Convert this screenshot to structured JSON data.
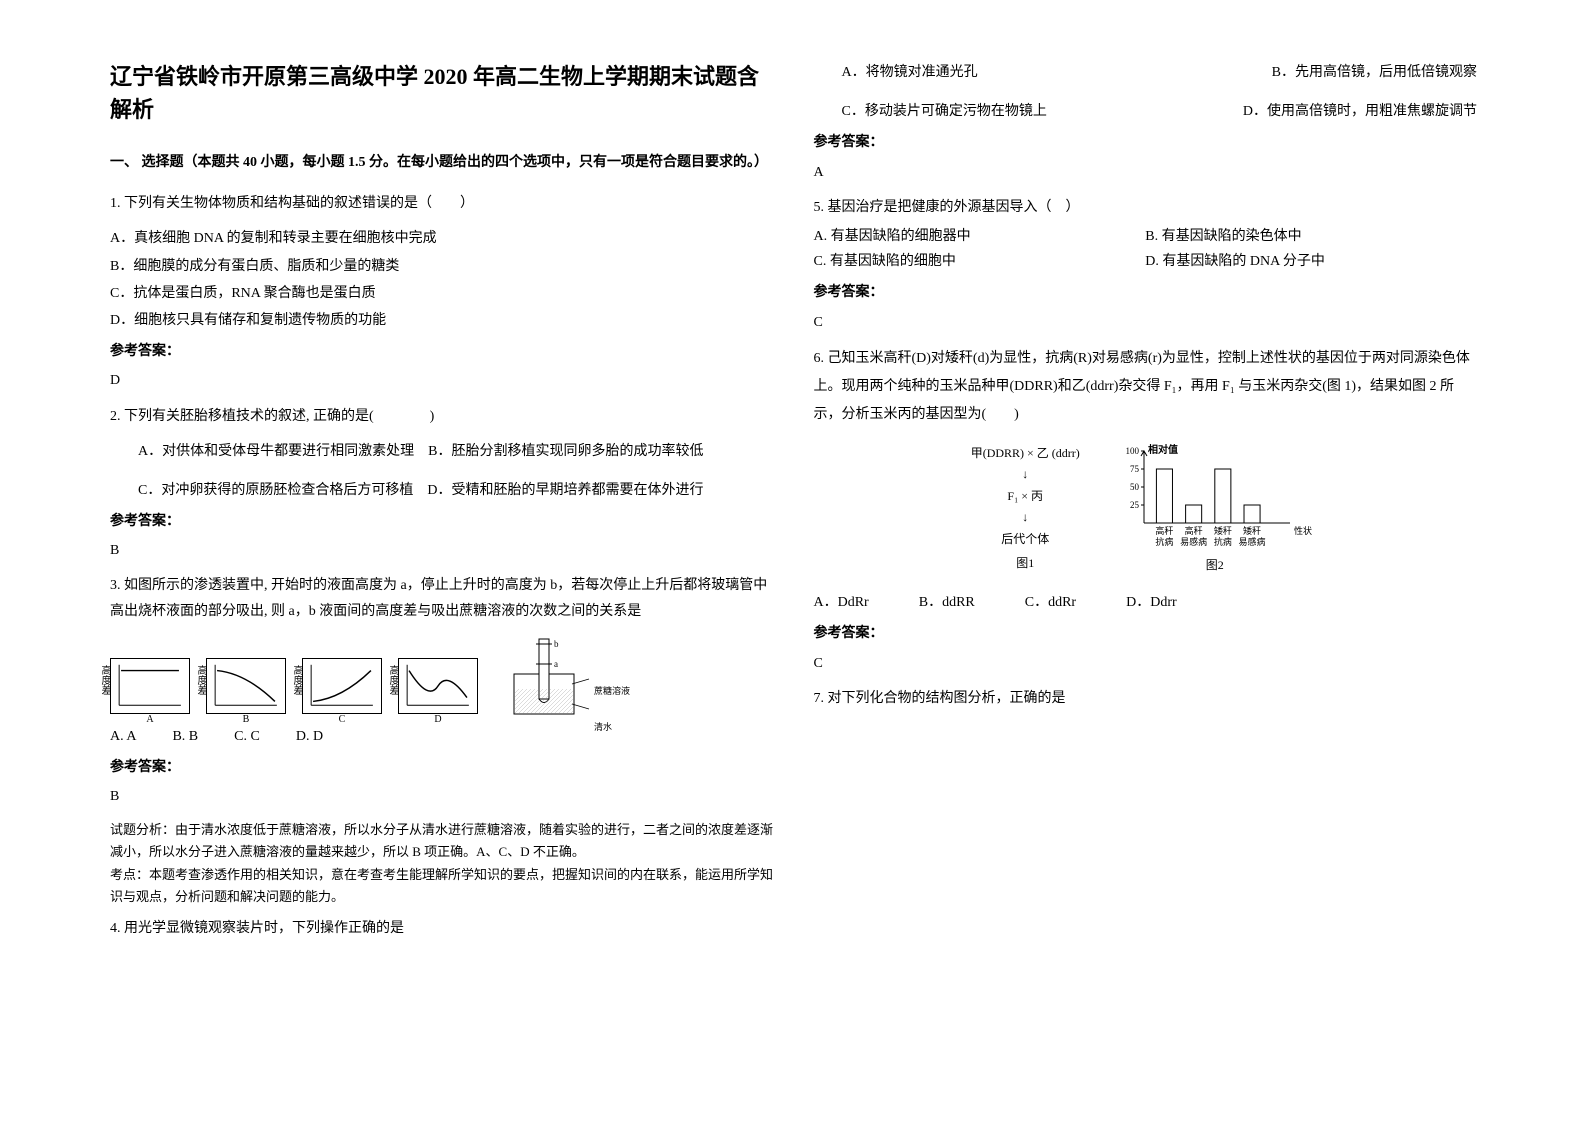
{
  "title": "辽宁省铁岭市开原第三高级中学 2020 年高二生物上学期期末试题含解析",
  "section1_header": "一、 选择题（本题共 40 小题，每小题 1.5 分。在每小题给出的四个选项中，只有一项是符合题目要求的。）",
  "q1": {
    "stem": "1. 下列有关生物体物质和结构基础的叙述错误的是（　　）",
    "optA": "A．真核细胞 DNA 的复制和转录主要在细胞核中完成",
    "optB": "B．细胞膜的成分有蛋白质、脂质和少量的糖类",
    "optC": "C．抗体是蛋白质，RNA 聚合酶也是蛋白质",
    "optD": "D．细胞核只具有储存和复制遗传物质的功能",
    "answer_label": "参考答案：",
    "answer": "D"
  },
  "q2": {
    "stem": "2. 下列有关胚胎移植技术的叙述, 正确的是(　　　　)",
    "optA": "A．对供体和受体母牛都要进行相同激素处理",
    "optB": "B．胚胎分割移植实现同卵多胎的成功率较低",
    "optC": "C．对冲卵获得的原肠胚检查合格后方可移植",
    "optD": "D．受精和胚胎的早期培养都需要在体外进行",
    "answer_label": "参考答案：",
    "answer": "B"
  },
  "q3": {
    "stem": "3. 如图所示的渗透装置中, 开始时的液面高度为 a，停止上升时的高度为 b，若每次停止上升后都将玻璃管中高出烧杯液面的部分吸出, 则 a，b 液面间的高度差与吸出蔗糖溶液的次数之间的关系是",
    "opt_labels": [
      "A. A",
      "B. B",
      "C. C",
      "D. D"
    ],
    "answer_label": "参考答案：",
    "answer": "B",
    "explanation": "试题分析：由于清水浓度低于蔗糖溶液，所以水分子从清水进行蔗糖溶液，随着实验的进行，二者之间的浓度差逐渐减小，所以水分子进入蔗糖溶液的量越来越少，所以 B 项正确。A、C、D 不正确。",
    "explanation2": "考点：本题考查渗透作用的相关知识，意在考查考生能理解所学知识的要点，把握知识间的内在联系，能运用所学知识与观点，分析问题和解决问题的能力。",
    "axis_y": "高度差",
    "chart_letters": [
      "A",
      "B",
      "C",
      "D"
    ],
    "apparatus_labels": {
      "b": "b",
      "a": "a",
      "sucrose": "蔗糖溶液",
      "water": "清水"
    }
  },
  "q4": {
    "stem": "4. 用光学显微镜观察装片时，下列操作正确的是",
    "optA": "A．将物镜对准通光孔",
    "optB": "B．先用高倍镜，后用低倍镜观察",
    "optC": "C．移动装片可确定污物在物镜上",
    "optD": "D．使用高倍镜时，用粗准焦螺旋调节",
    "answer_label": "参考答案：",
    "answer": "A"
  },
  "q5": {
    "stem": "5. 基因治疗是把健康的外源基因导入（　）",
    "optA": "A. 有基因缺陷的细胞器中",
    "optB": "B. 有基因缺陷的染色体中",
    "optC": "C. 有基因缺陷的细胞中",
    "optD": "D. 有基因缺陷的 DNA 分子中",
    "answer_label": "参考答案：",
    "answer": "C"
  },
  "q6": {
    "stem": "6. 己知玉米高秆(D)对矮秆(d)为显性，抗病(R)对易感病(r)为显性，控制上述性状的基因位于两对同源染色体上。现用两个纯种的玉米品种甲(DDRR)和乙(ddrr)杂交得 F₁，再用 F₁ 与玉米丙杂交(图 1)，结果如图 2 所示，分析玉米丙的基因型为(　　)",
    "diagram": {
      "line1": "甲(DDRR) ×  乙 (ddrr)",
      "arrow1": "↓",
      "line2": "F₁ × 丙",
      "arrow2": "↓",
      "line3": "后代个体",
      "fig1_label": "图1"
    },
    "chart": {
      "y_label": "相对值",
      "y_ticks": [
        "100",
        "75",
        "50",
        "25"
      ],
      "categories_top": [
        "高秆",
        "高秆",
        "矮秆",
        "矮秆"
      ],
      "categories_bottom": [
        "抗病",
        "易感病",
        "抗病",
        "易感病"
      ],
      "x_suffix": "性状",
      "values": [
        75,
        25,
        75,
        25
      ],
      "ylim_max": 100,
      "bar_color": "#ffffff",
      "bar_stroke": "#000000",
      "fig2_label": "图2"
    },
    "optA": "A．DdRr",
    "optB": "B．ddRR",
    "optC": "C．ddRr",
    "optD": "D．Ddrr",
    "answer_label": "参考答案：",
    "answer": "C"
  },
  "q7": {
    "stem": "7. 对下列化合物的结构图分析，正确的是"
  }
}
